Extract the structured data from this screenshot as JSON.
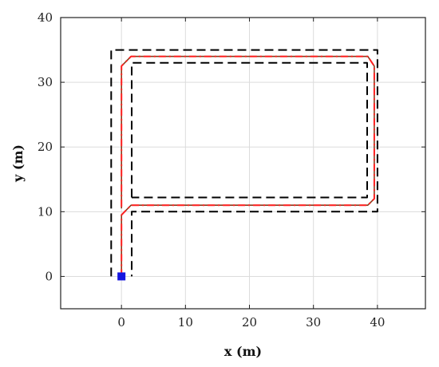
{
  "chart_data": {
    "type": "line",
    "title": "",
    "xlabel": "x (m)",
    "ylabel": "y (m)",
    "xlim": [
      -9.5,
      47.5
    ],
    "ylim": [
      -5,
      40
    ],
    "xticks": [
      0,
      10,
      20,
      30,
      40
    ],
    "yticks": [
      0,
      10,
      20,
      30,
      40
    ],
    "grid": true,
    "legend": "none",
    "series": [
      {
        "style": "dashed-black",
        "color": "#000000",
        "points": [
          [
            -1.6,
            0
          ],
          [
            -1.6,
            35
          ],
          [
            40,
            35
          ],
          [
            40,
            10
          ],
          [
            1.6,
            10
          ],
          [
            1.6,
            0
          ]
        ]
      },
      {
        "style": "dashed-black",
        "color": "#000000",
        "points": [
          [
            1.6,
            12.2
          ],
          [
            1.6,
            33
          ],
          [
            38.4,
            33
          ],
          [
            38.4,
            12.2
          ],
          [
            1.6,
            12.2
          ]
        ]
      },
      {
        "style": "solid-brown",
        "color": "#8B3A1A",
        "points": [
          [
            0,
            0
          ],
          [
            0,
            9.5
          ],
          [
            1.5,
            11
          ],
          [
            38.5,
            11
          ],
          [
            39.5,
            12
          ],
          [
            39.5,
            32.5
          ],
          [
            38.5,
            34
          ],
          [
            1.5,
            34
          ],
          [
            0,
            32.5
          ],
          [
            0,
            10.5
          ]
        ]
      },
      {
        "style": "dashdot-red",
        "color": "#ff2020",
        "points": [
          [
            0,
            0
          ],
          [
            0,
            9.5
          ],
          [
            1.5,
            11
          ],
          [
            38.5,
            11
          ],
          [
            39.5,
            12
          ],
          [
            39.5,
            32.5
          ],
          [
            38.5,
            34
          ],
          [
            1.5,
            34
          ],
          [
            0,
            32.5
          ],
          [
            0,
            10.5
          ]
        ]
      }
    ],
    "markers": [
      {
        "shape": "square",
        "color": "#1515e0",
        "x": 0,
        "y": 0
      }
    ]
  }
}
